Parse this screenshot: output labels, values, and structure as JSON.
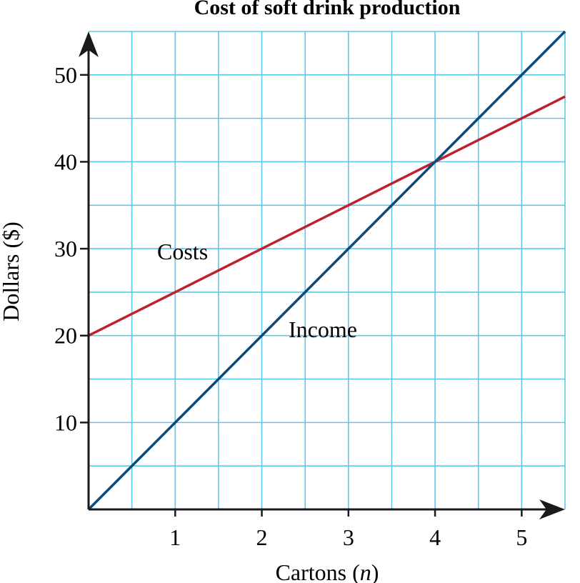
{
  "chart_data": {
    "type": "line",
    "title": "Cost of soft drink production",
    "xlabel": "Cartons (n)",
    "xlabel_main": "Cartons (",
    "xlabel_var": "n",
    "xlabel_end": ")",
    "ylabel": "Dollars ($)",
    "xlim": [
      0,
      5.5
    ],
    "ylim": [
      0,
      55
    ],
    "x_ticks": [
      1,
      2,
      3,
      4,
      5
    ],
    "y_ticks": [
      10,
      20,
      30,
      40,
      50
    ],
    "grid": true,
    "grid_x_step": 0.5,
    "grid_y_step": 5,
    "grid_color": "#5bc8ec",
    "series": [
      {
        "name": "Costs",
        "color": "#c0202e",
        "x": [
          0,
          5.5
        ],
        "y": [
          20,
          47.5
        ]
      },
      {
        "name": "Income",
        "color": "#0b4a7a",
        "x": [
          0,
          5.5
        ],
        "y": [
          0,
          55
        ]
      }
    ]
  }
}
